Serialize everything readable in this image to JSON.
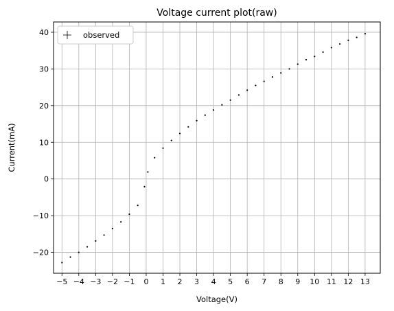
{
  "chart_data": {
    "type": "scatter",
    "title": "Voltage current plot(raw)",
    "xlabel": "Voltage(V)",
    "ylabel": "Current(mA)",
    "xlim": [
      -5.5,
      13.9
    ],
    "ylim": [
      -25.7,
      42.8
    ],
    "xticks": [
      -5,
      -4,
      -3,
      -2,
      -1,
      0,
      1,
      2,
      3,
      4,
      5,
      6,
      7,
      8,
      9,
      10,
      11,
      12,
      13
    ],
    "yticks": [
      -20,
      -10,
      0,
      10,
      20,
      30,
      40
    ],
    "grid": true,
    "legend": {
      "placement": "top-left",
      "entries": [
        "observed"
      ]
    },
    "series": [
      {
        "name": "observed",
        "color": "#000000",
        "marker": "+",
        "x": [
          -5,
          -4.5,
          -4,
          -3.5,
          -3,
          -2.5,
          -2,
          -1.5,
          -1,
          -0.5,
          -0.1,
          0.1,
          0.5,
          1,
          1.5,
          2,
          2.5,
          3,
          3.5,
          4,
          4.5,
          5,
          5.5,
          6,
          6.5,
          7,
          7.5,
          8,
          8.5,
          9,
          9.5,
          10,
          10.5,
          11,
          11.5,
          12,
          12.5,
          13
        ],
        "y": [
          -22.8,
          -21.3,
          -20.0,
          -18.5,
          -16.9,
          -15.3,
          -13.5,
          -11.7,
          -9.6,
          -7.2,
          -2.1,
          1.9,
          5.8,
          8.4,
          10.5,
          12.4,
          14.2,
          15.9,
          17.4,
          18.8,
          20.2,
          21.5,
          22.9,
          24.2,
          25.5,
          26.6,
          27.8,
          28.9,
          30.0,
          31.3,
          32.5,
          33.4,
          34.6,
          35.8,
          36.8,
          37.8,
          38.6,
          39.6
        ]
      }
    ]
  }
}
